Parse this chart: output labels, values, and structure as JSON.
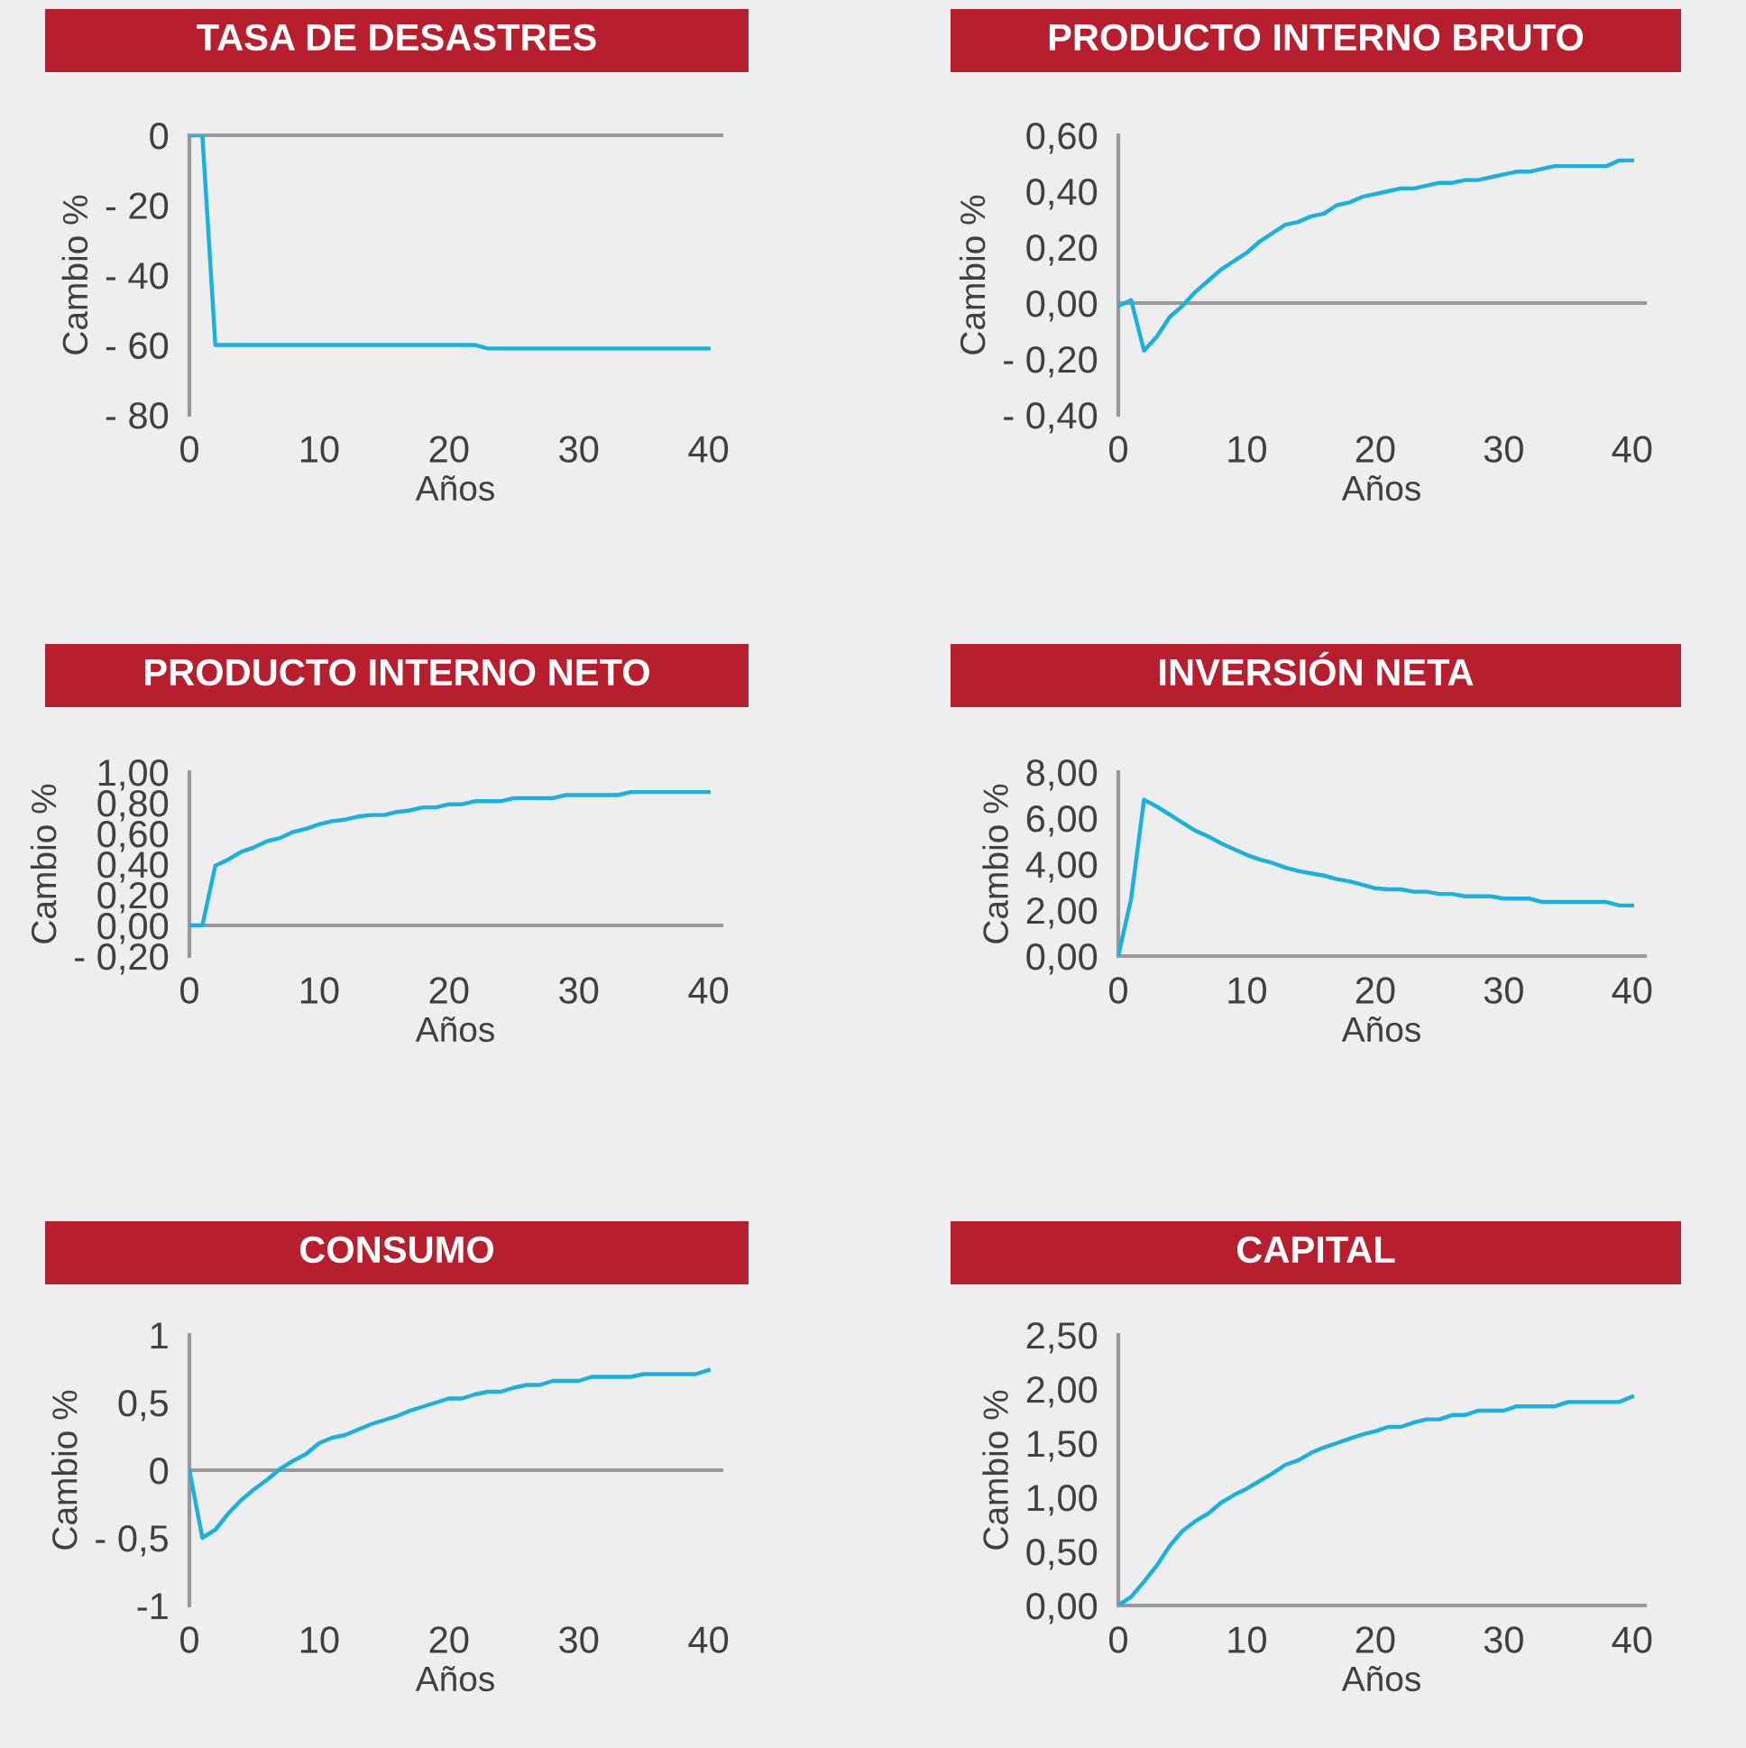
{
  "chart_data": [
    {
      "type": "line",
      "title": "TASA DE DESASTRES",
      "xlabel": "Años",
      "ylabel": "Cambio %",
      "x": [
        0,
        1,
        2,
        3,
        4,
        5,
        6,
        7,
        8,
        9,
        10,
        11,
        12,
        13,
        14,
        15,
        16,
        17,
        18,
        19,
        20,
        21,
        22,
        23,
        24,
        25,
        26,
        27,
        28,
        29,
        30,
        31,
        32,
        33,
        34,
        35,
        36,
        37,
        38,
        39,
        40
      ],
      "series": [
        {
          "color": "#1ab0e0",
          "values": [
            0,
            0,
            -60,
            -60,
            -60,
            -60,
            -60,
            -60,
            -60,
            -60,
            -60,
            -60,
            -60,
            -60,
            -60,
            -60,
            -60,
            -60,
            -60,
            -60,
            -60,
            -60,
            -60,
            -61,
            -61,
            -61,
            -61,
            -61,
            -61,
            -61,
            -61,
            -61,
            -61,
            -61,
            -61,
            -61,
            -61,
            -61,
            -61,
            -61,
            -61
          ]
        }
      ],
      "xlim": [
        0,
        41
      ],
      "xticks": [
        0,
        10,
        20,
        30,
        40
      ],
      "ylim": [
        -80,
        0
      ],
      "yticks": [
        {
          "value": -80,
          "label": "- 80"
        },
        {
          "value": -60,
          "label": "- 60"
        },
        {
          "value": -40,
          "label": "- 40"
        },
        {
          "value": -20,
          "label": "- 20"
        },
        0
      ]
    },
    {
      "type": "line",
      "title": "PRODUCTO INTERNO BRUTO",
      "xlabel": "Años",
      "ylabel": "Cambio %",
      "x": [
        0,
        1,
        2,
        3,
        4,
        5,
        6,
        7,
        8,
        9,
        10,
        11,
        12,
        13,
        14,
        15,
        16,
        17,
        18,
        19,
        20,
        21,
        22,
        23,
        24,
        25,
        26,
        27,
        28,
        29,
        30,
        31,
        32,
        33,
        34,
        35,
        36,
        37,
        38,
        39,
        40
      ],
      "series": [
        {
          "color": "#1ab0e0",
          "values": [
            -0.01,
            0.01,
            -0.17,
            -0.12,
            -0.05,
            -0.01,
            0.04,
            0.08,
            0.12,
            0.15,
            0.18,
            0.22,
            0.25,
            0.28,
            0.29,
            0.31,
            0.32,
            0.35,
            0.36,
            0.38,
            0.39,
            0.4,
            0.41,
            0.41,
            0.42,
            0.43,
            0.43,
            0.44,
            0.44,
            0.45,
            0.46,
            0.47,
            0.47,
            0.48,
            0.49,
            0.49,
            0.49,
            0.49,
            0.49,
            0.51,
            0.51
          ]
        }
      ],
      "xlim": [
        0,
        41
      ],
      "xticks": [
        0,
        10,
        20,
        30,
        40
      ],
      "ylim": [
        -0.4,
        0.6
      ],
      "yticks": [
        {
          "value": -0.4,
          "label": "- 0,40"
        },
        {
          "value": -0.2,
          "label": "- 0,20"
        },
        {
          "value": 0,
          "label": "0,00"
        },
        {
          "value": 0.2,
          "label": "0,20"
        },
        {
          "value": 0.4,
          "label": "0,40"
        },
        {
          "value": 0.6,
          "label": "0,60"
        }
      ]
    },
    {
      "type": "line",
      "title": "PRODUCTO INTERNO NETO",
      "xlabel": "Años",
      "ylabel": "Cambio %",
      "x": [
        0,
        1,
        2,
        3,
        4,
        5,
        6,
        7,
        8,
        9,
        10,
        11,
        12,
        13,
        14,
        15,
        16,
        17,
        18,
        19,
        20,
        21,
        22,
        23,
        24,
        25,
        26,
        27,
        28,
        29,
        30,
        31,
        32,
        33,
        34,
        35,
        36,
        37,
        38,
        39,
        40
      ],
      "series": [
        {
          "color": "#1ab0e0",
          "values": [
            0,
            0,
            0.39,
            0.43,
            0.48,
            0.51,
            0.55,
            0.57,
            0.61,
            0.63,
            0.66,
            0.68,
            0.69,
            0.71,
            0.72,
            0.72,
            0.74,
            0.75,
            0.77,
            0.77,
            0.79,
            0.79,
            0.81,
            0.81,
            0.81,
            0.83,
            0.83,
            0.83,
            0.83,
            0.85,
            0.85,
            0.85,
            0.85,
            0.85,
            0.87,
            0.87,
            0.87,
            0.87,
            0.87,
            0.87,
            0.87
          ]
        }
      ],
      "xlim": [
        0,
        41
      ],
      "xticks": [
        0,
        10,
        20,
        30,
        40
      ],
      "ylim": [
        -0.2,
        1.0
      ],
      "yticks": [
        {
          "value": -0.2,
          "label": "- 0,20"
        },
        {
          "value": 0,
          "label": "0,00"
        },
        {
          "value": 0.2,
          "label": "0,20"
        },
        {
          "value": 0.4,
          "label": "0,40"
        },
        {
          "value": 0.6,
          "label": "0,60"
        },
        {
          "value": 0.8,
          "label": "0,80"
        },
        {
          "value": 1.0,
          "label": "1,00"
        }
      ]
    },
    {
      "type": "line",
      "title": "INVERSIÓN NETA",
      "xlabel": "Años",
      "ylabel": "Cambio %",
      "x": [
        0,
        1,
        2,
        3,
        4,
        5,
        6,
        7,
        8,
        9,
        10,
        11,
        12,
        13,
        14,
        15,
        16,
        17,
        18,
        19,
        20,
        21,
        22,
        23,
        24,
        25,
        26,
        27,
        28,
        29,
        30,
        31,
        32,
        33,
        34,
        35,
        36,
        37,
        38,
        39,
        40
      ],
      "series": [
        {
          "color": "#1ab0e0",
          "values": [
            0,
            2.5,
            6.8,
            6.5,
            6.15,
            5.8,
            5.45,
            5.2,
            4.9,
            4.65,
            4.4,
            4.2,
            4.05,
            3.85,
            3.7,
            3.6,
            3.5,
            3.35,
            3.25,
            3.1,
            2.95,
            2.9,
            2.9,
            2.8,
            2.8,
            2.7,
            2.7,
            2.6,
            2.6,
            2.6,
            2.5,
            2.5,
            2.5,
            2.35,
            2.35,
            2.35,
            2.35,
            2.35,
            2.35,
            2.2,
            2.2
          ]
        }
      ],
      "xlim": [
        0,
        41
      ],
      "xticks": [
        0,
        10,
        20,
        30,
        40
      ],
      "ylim": [
        0,
        8
      ],
      "yticks": [
        {
          "value": 0,
          "label": "0,00"
        },
        {
          "value": 2,
          "label": "2,00"
        },
        {
          "value": 4,
          "label": "4,00"
        },
        {
          "value": 6,
          "label": "6,00"
        },
        {
          "value": 8,
          "label": "8,00"
        }
      ]
    },
    {
      "type": "line",
      "title": "CONSUMO",
      "xlabel": "Años",
      "ylabel": "Cambio %",
      "x": [
        0,
        1,
        2,
        3,
        4,
        5,
        6,
        7,
        8,
        9,
        10,
        11,
        12,
        13,
        14,
        15,
        16,
        17,
        18,
        19,
        20,
        21,
        22,
        23,
        24,
        25,
        26,
        27,
        28,
        29,
        30,
        31,
        32,
        33,
        34,
        35,
        36,
        37,
        38,
        39,
        40
      ],
      "series": [
        {
          "color": "#1ab0e0",
          "values": [
            0,
            -0.5,
            -0.44,
            -0.32,
            -0.22,
            -0.14,
            -0.07,
            0.01,
            0.07,
            0.12,
            0.2,
            0.24,
            0.26,
            0.3,
            0.34,
            0.37,
            0.4,
            0.44,
            0.47,
            0.5,
            0.53,
            0.53,
            0.56,
            0.58,
            0.58,
            0.61,
            0.63,
            0.63,
            0.66,
            0.66,
            0.66,
            0.69,
            0.69,
            0.69,
            0.69,
            0.71,
            0.71,
            0.71,
            0.71,
            0.71,
            0.74
          ]
        }
      ],
      "xlim": [
        0,
        41
      ],
      "xticks": [
        0,
        10,
        20,
        30,
        40
      ],
      "ylim": [
        -1,
        1
      ],
      "yticks": [
        {
          "value": -1,
          "label": "-1"
        },
        {
          "value": -0.5,
          "label": "- 0,5"
        },
        0,
        {
          "value": 0.5,
          "label": "0,5"
        },
        1
      ]
    },
    {
      "type": "line",
      "title": "CAPITAL",
      "xlabel": "Años",
      "ylabel": "Cambio %",
      "x": [
        0,
        1,
        2,
        3,
        4,
        5,
        6,
        7,
        8,
        9,
        10,
        11,
        12,
        13,
        14,
        15,
        16,
        17,
        18,
        19,
        20,
        21,
        22,
        23,
        24,
        25,
        26,
        27,
        28,
        29,
        30,
        31,
        32,
        33,
        34,
        35,
        36,
        37,
        38,
        39,
        40
      ],
      "series": [
        {
          "color": "#1ab0e0",
          "values": [
            0,
            0.08,
            0.22,
            0.37,
            0.55,
            0.69,
            0.78,
            0.85,
            0.95,
            1.02,
            1.08,
            1.15,
            1.22,
            1.3,
            1.34,
            1.41,
            1.46,
            1.5,
            1.54,
            1.58,
            1.61,
            1.65,
            1.65,
            1.69,
            1.72,
            1.72,
            1.76,
            1.76,
            1.8,
            1.8,
            1.8,
            1.84,
            1.84,
            1.84,
            1.84,
            1.88,
            1.88,
            1.88,
            1.88,
            1.88,
            1.93
          ]
        }
      ],
      "xlim": [
        0,
        41
      ],
      "xticks": [
        0,
        10,
        20,
        30,
        40
      ],
      "ylim": [
        0,
        2.5
      ],
      "yticks": [
        {
          "value": 0,
          "label": "0,00"
        },
        {
          "value": 0.5,
          "label": "0,50"
        },
        {
          "value": 1.0,
          "label": "1,00"
        },
        {
          "value": 1.5,
          "label": "1,50"
        },
        {
          "value": 2.0,
          "label": "2,00"
        },
        {
          "value": 2.5,
          "label": "2,50"
        }
      ]
    }
  ]
}
